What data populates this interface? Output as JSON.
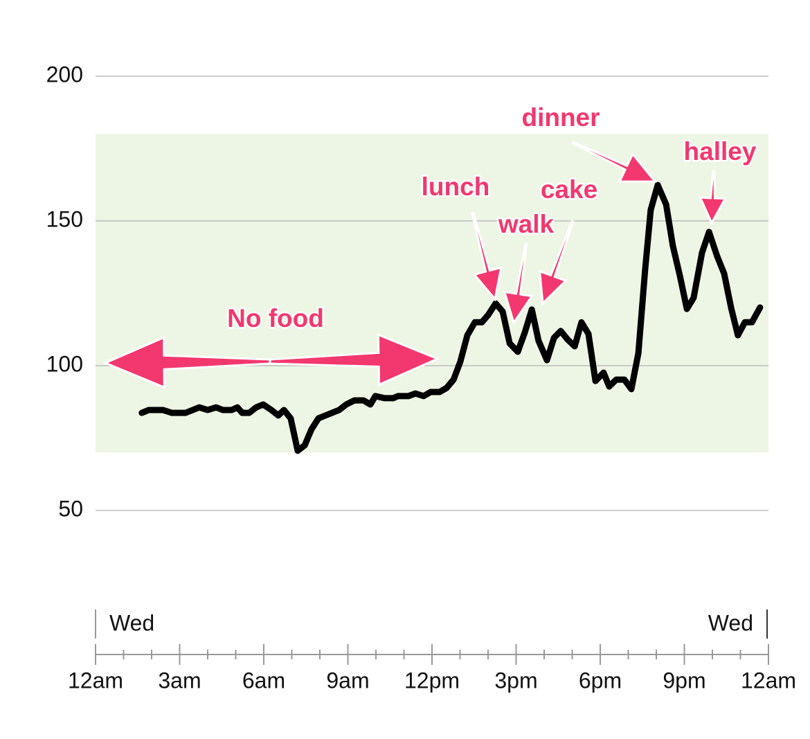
{
  "chart_data": {
    "type": "line",
    "x": [
      1.65,
      1.9,
      2.4,
      2.72,
      3.21,
      3.7,
      4.0,
      4.3,
      4.54,
      4.86,
      5.06,
      5.23,
      5.48,
      5.73,
      5.98,
      6.27,
      6.52,
      6.72,
      6.96,
      7.21,
      7.46,
      7.7,
      7.95,
      8.2,
      8.69,
      8.94,
      9.23,
      9.56,
      9.8,
      9.98,
      10.3,
      10.62,
      10.79,
      11.16,
      11.41,
      11.7,
      11.95,
      12.27,
      12.52,
      12.77,
      13.01,
      13.26,
      13.53,
      13.78,
      14.0,
      14.27,
      14.52,
      14.77,
      15.06,
      15.31,
      15.56,
      15.8,
      16.1,
      16.35,
      16.59,
      16.84,
      17.09,
      17.33,
      17.58,
      17.83,
      18.12,
      18.32,
      18.57,
      18.86,
      19.11,
      19.36,
      19.6,
      19.8,
      20.05,
      20.35,
      20.59,
      20.84,
      21.09,
      21.33,
      21.63,
      21.88,
      22.17,
      22.42,
      22.67,
      22.91,
      23.16,
      23.41,
      23.7
    ],
    "series": [
      {
        "color": "#000000",
        "values": [
          83.7,
          84.7,
          84.7,
          83.7,
          83.7,
          85.6,
          84.7,
          85.6,
          84.7,
          84.7,
          85.6,
          83.7,
          83.7,
          85.6,
          86.6,
          84.7,
          82.8,
          84.7,
          81.8,
          70.6,
          72.5,
          78,
          81.8,
          82.8,
          84.7,
          86.6,
          88,
          88,
          86.6,
          89.5,
          88.8,
          88.8,
          89.5,
          89.5,
          90.4,
          89.5,
          90.9,
          90.9,
          92.3,
          95.2,
          101.4,
          110.5,
          115,
          115,
          117.5,
          121.5,
          118.7,
          107.7,
          104.8,
          111.5,
          119.4,
          108.6,
          101.9,
          109.6,
          112,
          109,
          106.7,
          115,
          111,
          94.7,
          97.6,
          92.8,
          95.2,
          95.2,
          91.9,
          104.3,
          133,
          153.8,
          162.4,
          155.7,
          141.4,
          131.1,
          119.6,
          123.4,
          139,
          146.2,
          137.8,
          131.8,
          119.9,
          110.5,
          115,
          115,
          120.1
        ]
      }
    ],
    "xlim": [
      0,
      24
    ],
    "xticks": [
      {
        "value": 0,
        "label": "12am"
      },
      {
        "value": 3,
        "label": "3am"
      },
      {
        "value": 6,
        "label": "6am"
      },
      {
        "value": 9,
        "label": "9am"
      },
      {
        "value": 12,
        "label": "12pm"
      },
      {
        "value": 15,
        "label": "3pm"
      },
      {
        "value": 18,
        "label": "6pm"
      },
      {
        "value": 21,
        "label": "9pm"
      },
      {
        "value": 24,
        "label": "12am"
      }
    ],
    "minor_xticks": [
      1,
      2,
      4,
      5,
      7,
      8,
      10,
      11,
      13,
      14,
      16,
      17,
      19,
      20,
      22,
      23
    ],
    "day_labels": [
      "Wed",
      "Wed"
    ],
    "ylim": [
      50,
      200
    ],
    "yticks": [
      50,
      100,
      150,
      200
    ],
    "target_range": [
      70,
      180
    ],
    "target_color": "#edf5e4",
    "grid": true,
    "annotations": [
      "No food",
      "lunch",
      "walk",
      "cake",
      "dinner",
      "halley"
    ]
  }
}
